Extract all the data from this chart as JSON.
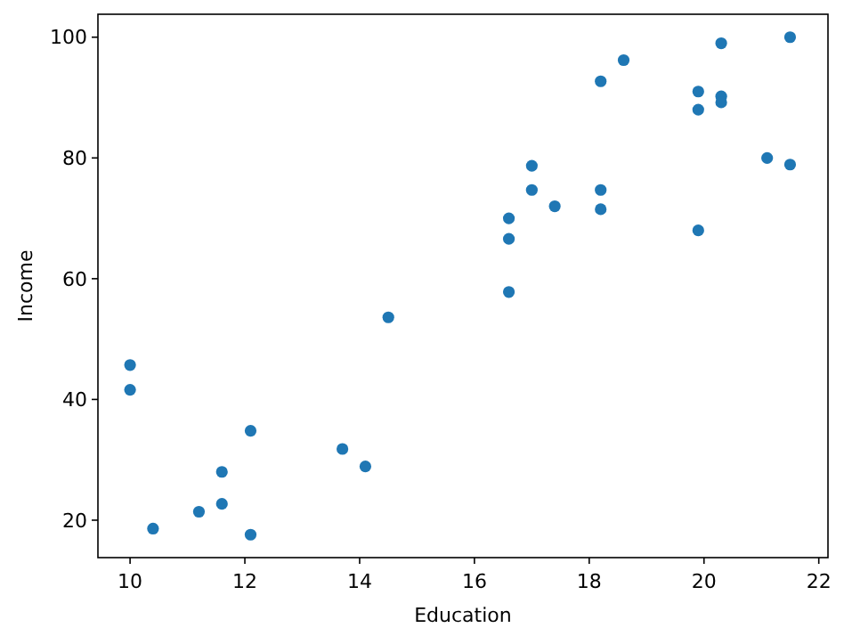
{
  "chart_data": {
    "type": "scatter",
    "xlabel": "Education",
    "ylabel": "Income",
    "color": "#1f77b4",
    "marker": "circle",
    "grid": false,
    "x": [
      10,
      10,
      10.4,
      11.2,
      11.6,
      11.6,
      12.1,
      12.1,
      13.7,
      14.1,
      14.5,
      16.6,
      16.6,
      16.6,
      17,
      17,
      17.4,
      18.2,
      18.2,
      18.2,
      18.6,
      19.9,
      19.9,
      19.9,
      20.3,
      20.3,
      20.3,
      21.1,
      21.5,
      21.5
    ],
    "values": [
      45.7,
      41.6,
      18.6,
      21.4,
      22.7,
      28,
      34.8,
      17.6,
      31.8,
      28.9,
      53.6,
      70,
      66.6,
      57.8,
      78.7,
      74.7,
      72,
      92.7,
      74.7,
      71.5,
      96.2,
      91,
      88,
      68,
      99,
      90.2,
      89.2,
      80,
      100,
      78.9
    ],
    "xlim": [
      9.44,
      22.16
    ],
    "ylim": [
      13.8,
      103.8
    ],
    "xticks": [
      10,
      12,
      14,
      16,
      18,
      20,
      22
    ],
    "yticks": [
      20,
      40,
      60,
      80,
      100
    ]
  }
}
